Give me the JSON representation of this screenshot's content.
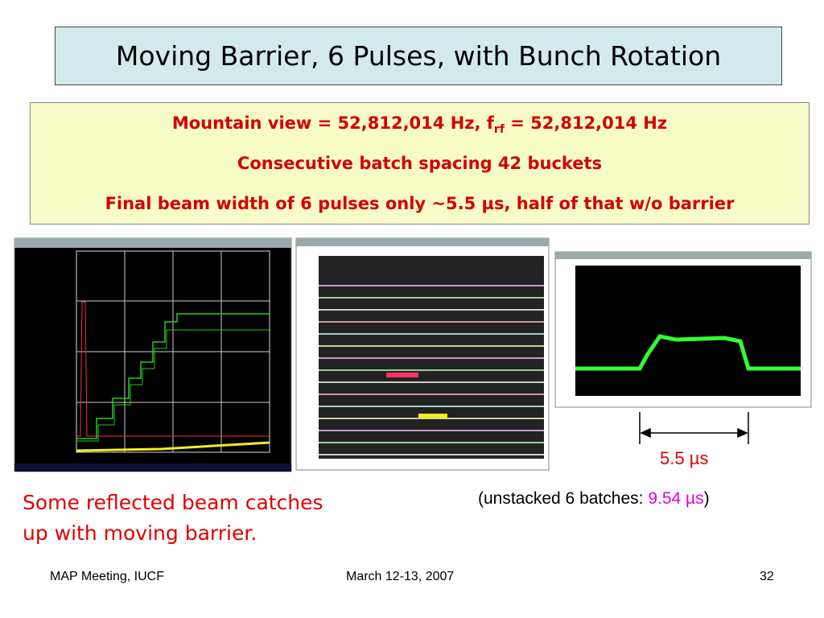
{
  "title": "Moving Barrier, 6 Pulses, with Bunch Rotation",
  "info_box": {
    "line1": {
      "start": "Mountain view = 52,812,014 Hz, f",
      "sub": "rf",
      "end": "= 52,812,014 Hz"
    },
    "line2": "Consecutive batch spacing 42 buckets",
    "line3": "Final beam width of 6 pulses only ~5.5 µs, half of that w/o barrier"
  },
  "annotations": {
    "width_label": "5.5 µs",
    "unstacked": {
      "prefix": "(unstacked 6 batches:",
      "value": "9.54 µs",
      "suffix": ")"
    },
    "note": [
      "Some reflected beam catches",
      "up with moving barrier."
    ]
  },
  "footer": {
    "left": "MAP Meeting, IUCF",
    "center": "March 12-13, 2007",
    "right": "32"
  }
}
